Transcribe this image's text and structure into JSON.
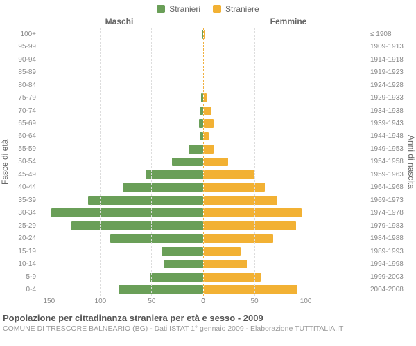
{
  "legend": {
    "items": [
      {
        "label": "Stranieri",
        "color": "#6a9f58"
      },
      {
        "label": "Straniere",
        "color": "#f2b134"
      }
    ]
  },
  "columnTitles": {
    "male": "Maschi",
    "female": "Femmine"
  },
  "axisLabels": {
    "left": "Fasce di età",
    "right": "Anni di nascita"
  },
  "chart": {
    "type": "population-pyramid",
    "maleColor": "#6a9f58",
    "femaleColor": "#f2b134",
    "background": "#ffffff",
    "gridColor": "#dddddd",
    "centerDash": "#f0b040",
    "maxX": 160,
    "xtick": 50,
    "xticksLeft": [
      150,
      100,
      50,
      0
    ],
    "xticksRight": [
      0,
      50,
      100
    ],
    "ageBands": [
      "100+",
      "95-99",
      "90-94",
      "85-89",
      "80-84",
      "75-79",
      "70-74",
      "65-69",
      "60-64",
      "55-59",
      "50-54",
      "45-49",
      "40-44",
      "35-39",
      "30-34",
      "25-29",
      "20-24",
      "15-19",
      "10-14",
      "5-9",
      "0-4"
    ],
    "birthBands": [
      "≤ 1908",
      "1909-1913",
      "1914-1918",
      "1919-1923",
      "1924-1928",
      "1929-1933",
      "1934-1938",
      "1939-1943",
      "1944-1948",
      "1949-1953",
      "1954-1958",
      "1959-1963",
      "1964-1968",
      "1969-1973",
      "1974-1978",
      "1979-1983",
      "1984-1988",
      "1989-1993",
      "1994-1998",
      "1999-2003",
      "2004-2008"
    ],
    "male": [
      1,
      0,
      0,
      0,
      0,
      2,
      3,
      4,
      3,
      14,
      30,
      56,
      78,
      112,
      148,
      128,
      90,
      40,
      38,
      52,
      82
    ],
    "female": [
      1,
      0,
      0,
      0,
      0,
      3,
      8,
      10,
      5,
      10,
      24,
      50,
      60,
      72,
      96,
      90,
      68,
      36,
      42,
      56,
      92
    ]
  },
  "footer": {
    "title": "Popolazione per cittadinanza straniera per età e sesso - 2009",
    "subtitle": "COMUNE DI TRESCORE BALNEARIO (BG) - Dati ISTAT 1° gennaio 2009 - Elaborazione TUTTITALIA.IT"
  },
  "fonts": {
    "family": "Arial",
    "labelSize": 10,
    "titleSize": 13
  }
}
